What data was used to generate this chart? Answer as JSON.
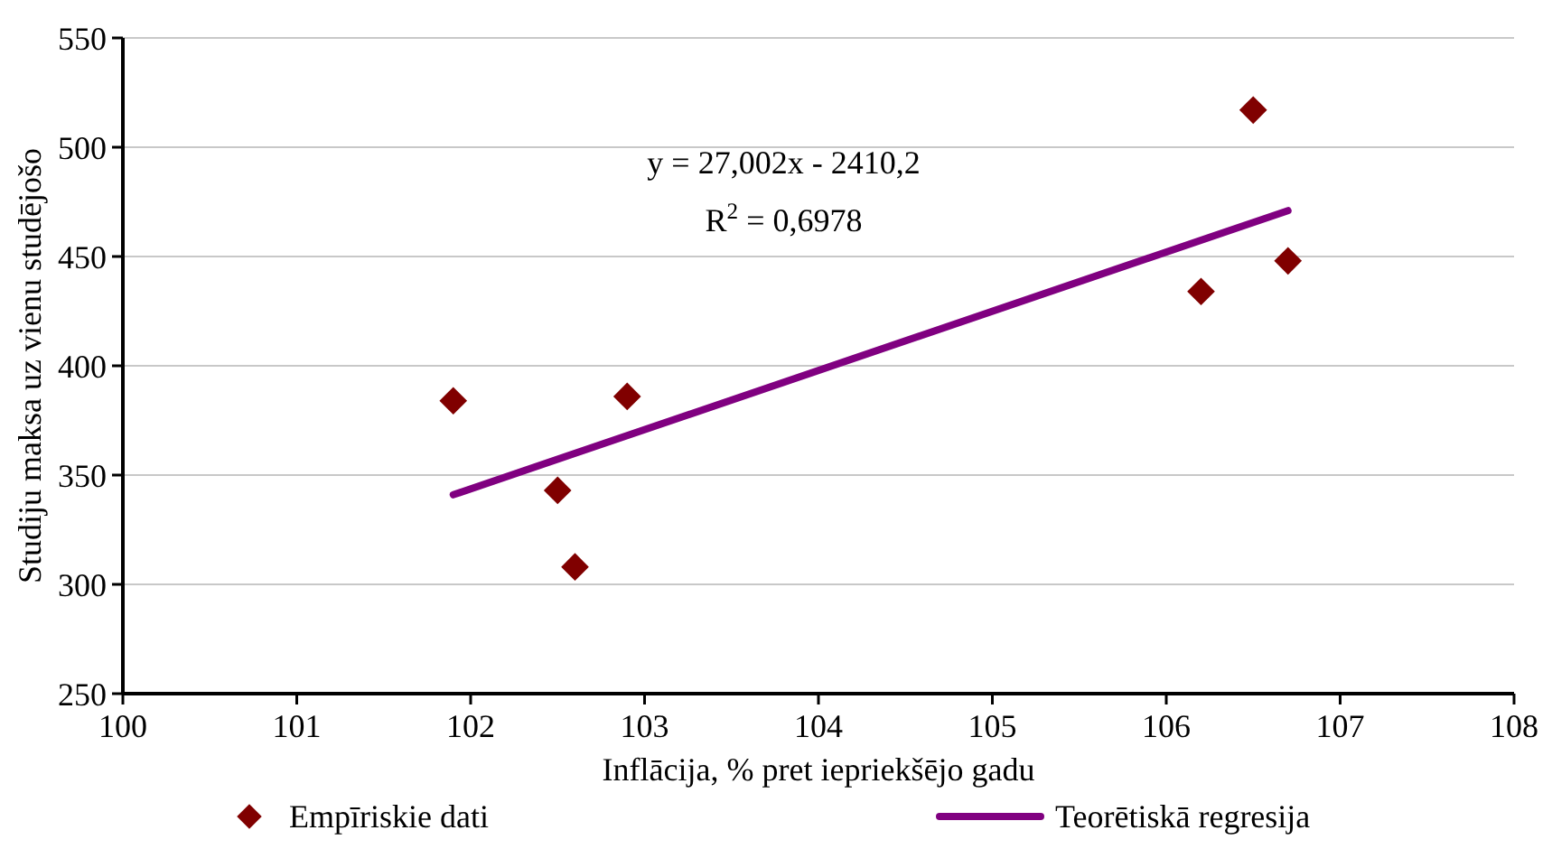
{
  "chart_data": {
    "type": "scatter",
    "xlabel": "Inflācija, % pret iepriekšējo gadu",
    "ylabel": "Studiju maksa uz vienu studējošo",
    "xlim": [
      100,
      108
    ],
    "xticks": [
      100,
      101,
      102,
      103,
      104,
      105,
      106,
      107,
      108
    ],
    "ylim": [
      250,
      550
    ],
    "yticks": [
      250,
      300,
      350,
      400,
      450,
      500,
      550
    ],
    "grid": "y",
    "legend": "bottom",
    "x": [
      101.9,
      102.5,
      102.6,
      102.9,
      106.2,
      106.5,
      106.7
    ],
    "series": [
      {
        "name": "Empīriskie dati",
        "color": "#800000",
        "marker": "diamond",
        "values": [
          384,
          343,
          308,
          386,
          434,
          517,
          448
        ]
      },
      {
        "name": "Teorētiskā regresija",
        "type": "line",
        "marker": "none",
        "color": "#800080",
        "x": [
          101.9,
          106.7
        ],
        "values": [
          341,
          471
        ]
      }
    ],
    "annotations": [
      "y = 27,002x - 2410,2",
      "R$^{2}$ = 0,6978"
    ]
  }
}
